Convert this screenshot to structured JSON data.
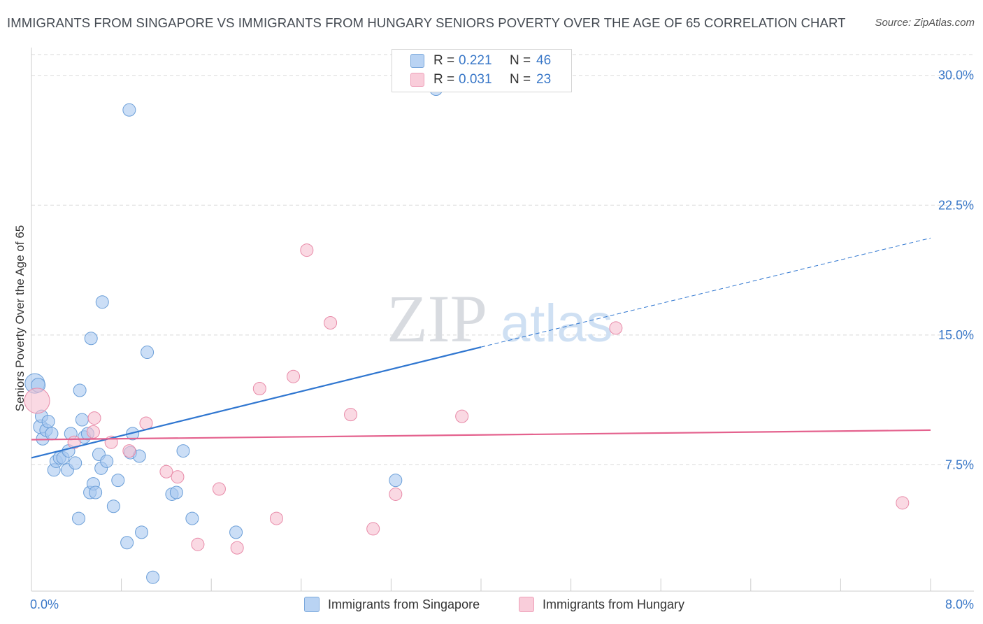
{
  "title": "IMMIGRANTS FROM SINGAPORE VS IMMIGRANTS FROM HUNGARY SENIORS POVERTY OVER THE AGE OF 65 CORRELATION CHART",
  "source": "Source: ZipAtlas.com",
  "watermark": {
    "zip": "ZIP",
    "atlas": "atlas"
  },
  "legend": {
    "rows": [
      {
        "r_label": "R =",
        "r_value": "0.221",
        "n_label": "N =",
        "n_value": "46"
      },
      {
        "r_label": "R =",
        "r_value": "0.031",
        "n_label": "N =",
        "n_value": "23"
      }
    ]
  },
  "colors": {
    "singapore_fill": "#a9c8f0",
    "singapore_stroke": "#6a9ed8",
    "singapore_line": "#2f76d0",
    "hungary_fill": "#f6c0d0",
    "hungary_stroke": "#e88aa8",
    "hungary_line": "#e4628e",
    "grid": "#d9d9d9",
    "tick_label": "#3a78c8"
  },
  "chart_data": {
    "type": "scatter",
    "title": "IMMIGRANTS FROM SINGAPORE VS IMMIGRANTS FROM HUNGARY SENIORS POVERTY OVER THE AGE OF 65 CORRELATION CHART",
    "xlabel": "",
    "ylabel": "Seniors Poverty Over the Age of 65",
    "xlim": [
      0,
      8.0
    ],
    "ylim": [
      0.2,
      31.2
    ],
    "x_tick_labels": [
      "0.0%",
      "8.0%"
    ],
    "y_ticks": [
      7.5,
      15.0,
      22.5,
      30.0
    ],
    "y_tick_labels": [
      "7.5%",
      "15.0%",
      "22.5%",
      "30.0%"
    ],
    "series": [
      {
        "name": "Immigrants from Singapore",
        "r": 0.221,
        "n": 46,
        "trend": {
          "x0": 0.0,
          "y0": 7.9,
          "x_solid_end": 4.0,
          "y_solid_end": 14.3,
          "x1": 8.0,
          "y1": 20.6
        },
        "points": [
          [
            0.03,
            12.2,
            14
          ],
          [
            0.06,
            12.1,
            10
          ],
          [
            0.08,
            9.7,
            10
          ],
          [
            0.09,
            10.3,
            9
          ],
          [
            0.1,
            9.0,
            9
          ],
          [
            0.13,
            9.5,
            9
          ],
          [
            0.15,
            10.0,
            9
          ],
          [
            0.18,
            9.3,
            9
          ],
          [
            0.2,
            7.2,
            9
          ],
          [
            0.22,
            7.7,
            9
          ],
          [
            0.25,
            7.9,
            9
          ],
          [
            0.28,
            7.9,
            9
          ],
          [
            0.32,
            7.2,
            9
          ],
          [
            0.33,
            8.3,
            9
          ],
          [
            0.35,
            9.3,
            9
          ],
          [
            0.39,
            7.6,
            9
          ],
          [
            0.42,
            4.4,
            9
          ],
          [
            0.43,
            11.8,
            9
          ],
          [
            0.45,
            10.1,
            9
          ],
          [
            0.47,
            9.1,
            9
          ],
          [
            0.5,
            9.3,
            9
          ],
          [
            0.52,
            5.9,
            9
          ],
          [
            0.53,
            14.8,
            9
          ],
          [
            0.55,
            6.4,
            9
          ],
          [
            0.57,
            5.9,
            9
          ],
          [
            0.6,
            8.1,
            9
          ],
          [
            0.62,
            7.3,
            9
          ],
          [
            0.63,
            16.9,
            9
          ],
          [
            0.67,
            7.7,
            9
          ],
          [
            0.73,
            5.1,
            9
          ],
          [
            0.77,
            6.6,
            9
          ],
          [
            0.85,
            3.0,
            9
          ],
          [
            0.87,
            28.0,
            9
          ],
          [
            0.88,
            8.2,
            9
          ],
          [
            0.9,
            9.3,
            9
          ],
          [
            0.96,
            8.0,
            9
          ],
          [
            0.98,
            3.6,
            9
          ],
          [
            1.03,
            14.0,
            9
          ],
          [
            1.08,
            1.0,
            9
          ],
          [
            1.25,
            5.8,
            9
          ],
          [
            1.29,
            5.9,
            9
          ],
          [
            1.35,
            8.3,
            9
          ],
          [
            1.43,
            4.4,
            9
          ],
          [
            1.82,
            3.6,
            9
          ],
          [
            3.24,
            6.6,
            9
          ],
          [
            3.6,
            29.2,
            9
          ]
        ]
      },
      {
        "name": "Immigrants from Hungary",
        "r": 0.031,
        "n": 23,
        "trend": {
          "x0": 0.0,
          "y0": 8.95,
          "x1": 8.0,
          "y1": 9.5
        },
        "points": [
          [
            0.05,
            11.2,
            18
          ],
          [
            0.38,
            8.8,
            9
          ],
          [
            0.55,
            9.4,
            9
          ],
          [
            0.56,
            10.2,
            9
          ],
          [
            0.71,
            8.8,
            9
          ],
          [
            0.87,
            8.3,
            9
          ],
          [
            1.02,
            9.9,
            9
          ],
          [
            1.2,
            7.1,
            9
          ],
          [
            1.3,
            6.8,
            9
          ],
          [
            1.48,
            2.9,
            9
          ],
          [
            1.67,
            6.1,
            9
          ],
          [
            1.83,
            2.7,
            9
          ],
          [
            2.03,
            11.9,
            9
          ],
          [
            2.18,
            4.4,
            9
          ],
          [
            2.33,
            12.6,
            9
          ],
          [
            2.45,
            19.9,
            9
          ],
          [
            2.66,
            15.7,
            9
          ],
          [
            2.84,
            10.4,
            9
          ],
          [
            3.04,
            3.8,
            9
          ],
          [
            3.24,
            5.8,
            9
          ],
          [
            3.83,
            10.3,
            9
          ],
          [
            5.2,
            15.4,
            9
          ],
          [
            7.75,
            5.3,
            9
          ]
        ]
      }
    ]
  }
}
